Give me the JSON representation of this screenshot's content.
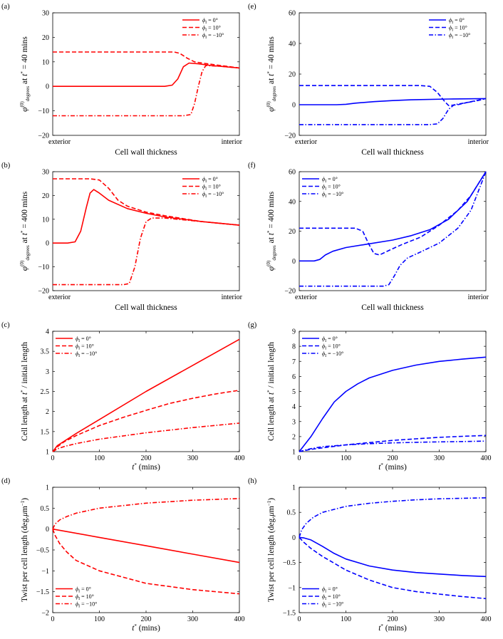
{
  "chart_data": [
    {
      "type": "line",
      "label": "(a)",
      "color": "#ff0000",
      "ylabel": "φ(0)degrees at t* = 40 mins",
      "xlabel": "Cell wall thickness",
      "xticks": [
        "exterior",
        "interior"
      ],
      "xlim": [
        0,
        1
      ],
      "ylim": [
        -20,
        30
      ],
      "yticks": [
        -20,
        -10,
        0,
        10,
        20,
        30
      ],
      "legend": "top-right",
      "series": [
        {
          "name": "ϕI = 0°",
          "dash": "solid",
          "x": [
            0,
            0.5,
            0.6,
            0.64,
            0.67,
            0.7,
            0.73,
            0.78,
            0.85,
            1.0
          ],
          "y": [
            0,
            0,
            0,
            0.5,
            3,
            8,
            9.5,
            9.2,
            8.5,
            7.5
          ]
        },
        {
          "name": "ϕI = 10°",
          "dash": "dash",
          "x": [
            0,
            0.6,
            0.65,
            0.68,
            0.72,
            0.76,
            0.8,
            0.9,
            1.0
          ],
          "y": [
            14,
            14,
            14,
            13.5,
            11.5,
            10,
            9.5,
            8.5,
            7.5
          ]
        },
        {
          "name": "ϕI = −10°",
          "dash": "dashdot",
          "x": [
            0,
            0.7,
            0.74,
            0.76,
            0.78,
            0.8,
            0.82,
            0.9,
            1.0
          ],
          "y": [
            -12,
            -12,
            -11.5,
            -7,
            0,
            6,
            8.5,
            8.2,
            7.5
          ]
        }
      ]
    },
    {
      "type": "line",
      "label": "(b)",
      "color": "#ff0000",
      "ylabel": "φ(0)degrees at t* = 400 mins",
      "xlabel": "Cell wall thickness",
      "xticks": [
        "exterior",
        "interior"
      ],
      "xlim": [
        0,
        1
      ],
      "ylim": [
        -20,
        30
      ],
      "yticks": [
        -20,
        -10,
        0,
        10,
        20,
        30
      ],
      "legend": "top-right",
      "series": [
        {
          "name": "ϕI = 0°",
          "dash": "solid",
          "x": [
            0,
            0.08,
            0.12,
            0.15,
            0.18,
            0.2,
            0.22,
            0.25,
            0.3,
            0.4,
            0.5,
            0.6,
            0.8,
            1.0
          ],
          "y": [
            0,
            0,
            0.5,
            5,
            15,
            21,
            22.5,
            21,
            18,
            14.5,
            12.5,
            11,
            9,
            7.5
          ]
        },
        {
          "name": "ϕI = 10°",
          "dash": "dash",
          "x": [
            0,
            0.2,
            0.25,
            0.3,
            0.35,
            0.4,
            0.5,
            0.6,
            0.8,
            1.0
          ],
          "y": [
            27,
            27,
            26.5,
            23,
            18,
            15.5,
            13,
            11.5,
            9,
            7.5
          ]
        },
        {
          "name": "ϕI = −10°",
          "dash": "dashdot",
          "x": [
            0,
            0.38,
            0.41,
            0.44,
            0.47,
            0.5,
            0.53,
            0.6,
            0.8,
            1.0
          ],
          "y": [
            -17.5,
            -17.5,
            -17,
            -10,
            2,
            9,
            10.5,
            10.5,
            9,
            7.5
          ]
        }
      ]
    },
    {
      "type": "line",
      "label": "(c)",
      "color": "#ff0000",
      "ylabel": "Cell length at t* / initial length",
      "xlabel": "t* (mins)",
      "xlim": [
        0,
        400
      ],
      "ylim": [
        1,
        4
      ],
      "yticks": [
        1,
        1.5,
        2,
        2.5,
        3,
        3.5,
        4
      ],
      "xticks": [
        0,
        100,
        200,
        300,
        400
      ],
      "legend": "top-left",
      "series": [
        {
          "name": "ϕI = 0°",
          "dash": "solid",
          "x": [
            0,
            10,
            50,
            100,
            200,
            300,
            400
          ],
          "y": [
            1,
            1.15,
            1.45,
            1.8,
            2.5,
            3.15,
            3.8
          ]
        },
        {
          "name": "ϕI = 10°",
          "dash": "dash",
          "x": [
            0,
            10,
            25,
            50,
            100,
            150,
            200,
            250,
            300,
            350,
            400
          ],
          "y": [
            1,
            1.12,
            1.25,
            1.4,
            1.65,
            1.85,
            2.03,
            2.2,
            2.33,
            2.44,
            2.53
          ]
        },
        {
          "name": "ϕI = −10°",
          "dash": "dashdot",
          "x": [
            0,
            10,
            25,
            50,
            100,
            200,
            300,
            400
          ],
          "y": [
            1,
            1.07,
            1.13,
            1.2,
            1.31,
            1.47,
            1.6,
            1.71
          ]
        }
      ]
    },
    {
      "type": "line",
      "label": "(d)",
      "color": "#ff0000",
      "ylabel": "Twist per cell length (deg.μm−1)",
      "xlabel": "t* (mins)",
      "xlim": [
        0,
        400
      ],
      "ylim": [
        -2,
        1
      ],
      "yticks": [
        -2,
        -1.5,
        -1,
        -0.5,
        0,
        0.5,
        1
      ],
      "xticks": [
        0,
        100,
        200,
        300,
        400
      ],
      "legend": "bottom-left",
      "series": [
        {
          "name": "ϕI = 0°",
          "dash": "solid",
          "x": [
            0,
            100,
            200,
            300,
            400
          ],
          "y": [
            0,
            -0.2,
            -0.4,
            -0.6,
            -0.8
          ]
        },
        {
          "name": "ϕI = 10°",
          "dash": "dash",
          "x": [
            0,
            5,
            15,
            30,
            50,
            100,
            150,
            200,
            300,
            400
          ],
          "y": [
            0,
            -0.15,
            -0.35,
            -0.55,
            -0.75,
            -1.0,
            -1.15,
            -1.3,
            -1.45,
            -1.55
          ]
        },
        {
          "name": "ϕI = −10°",
          "dash": "dashdot",
          "x": [
            0,
            5,
            15,
            30,
            50,
            100,
            200,
            300,
            400
          ],
          "y": [
            0,
            0.12,
            0.22,
            0.3,
            0.38,
            0.5,
            0.62,
            0.69,
            0.73
          ]
        }
      ]
    },
    {
      "type": "line",
      "label": "(e)",
      "color": "#0000ff",
      "ylabel": "φ(0)degrees at t* = 40 mins",
      "xlabel": "Cell wall thickness",
      "xticks": [
        "exterior",
        "interior"
      ],
      "xlim": [
        0,
        1
      ],
      "ylim": [
        -20,
        60
      ],
      "yticks": [
        -20,
        0,
        20,
        40,
        60
      ],
      "legend": "top-right",
      "series": [
        {
          "name": "ϕI = 0°",
          "dash": "solid",
          "x": [
            0,
            0.2,
            0.25,
            0.3,
            0.4,
            0.5,
            0.6,
            0.8,
            1.0
          ],
          "y": [
            0,
            0,
            0.3,
            1,
            2,
            2.7,
            3.2,
            3.7,
            4
          ]
        },
        {
          "name": "ϕI = 10°",
          "dash": "dash",
          "x": [
            0,
            0.65,
            0.7,
            0.74,
            0.78,
            0.8,
            0.85,
            0.9,
            1.0
          ],
          "y": [
            12.5,
            12.5,
            12,
            8,
            2,
            -0.5,
            0,
            1.5,
            4
          ]
        },
        {
          "name": "ϕI = −10°",
          "dash": "dashdot",
          "x": [
            0,
            0.7,
            0.74,
            0.77,
            0.8,
            0.83,
            0.88,
            0.95,
            1.0
          ],
          "y": [
            -13,
            -13,
            -12.5,
            -9,
            -3,
            0,
            1,
            2.5,
            4
          ]
        }
      ]
    },
    {
      "type": "line",
      "label": "(f)",
      "color": "#0000ff",
      "ylabel": "φ(0)degrees at t* = 400 mins",
      "xlabel": "Cell wall thickness",
      "xticks": [
        "exterior",
        "interior"
      ],
      "xlim": [
        0,
        1
      ],
      "ylim": [
        -20,
        60
      ],
      "yticks": [
        -20,
        0,
        20,
        40,
        60
      ],
      "legend": "top-left",
      "series": [
        {
          "name": "ϕI = 0°",
          "dash": "solid",
          "x": [
            0,
            0.08,
            0.11,
            0.14,
            0.18,
            0.25,
            0.35,
            0.5,
            0.6,
            0.7,
            0.8,
            0.9,
            1.0
          ],
          "y": [
            0,
            0,
            1,
            4,
            6.5,
            9,
            11,
            14,
            17,
            21,
            28,
            40,
            60
          ]
        },
        {
          "name": "ϕI = 10°",
          "dash": "dash",
          "x": [
            0,
            0.3,
            0.34,
            0.37,
            0.4,
            0.43,
            0.48,
            0.55,
            0.65,
            0.75,
            0.85,
            0.92,
            1.0
          ],
          "y": [
            22,
            22,
            20,
            12,
            5,
            4,
            7,
            11,
            16,
            24,
            34,
            44,
            60
          ]
        },
        {
          "name": "ϕI = −10°",
          "dash": "dashdot",
          "x": [
            0,
            0.45,
            0.48,
            0.51,
            0.54,
            0.58,
            0.65,
            0.75,
            0.85,
            0.92,
            1.0
          ],
          "y": [
            -17,
            -17,
            -16,
            -10,
            -3,
            2,
            6,
            12,
            22,
            34,
            60
          ]
        }
      ]
    },
    {
      "type": "line",
      "label": "(g)",
      "color": "#0000ff",
      "ylabel": "Cell length at t* / initial length",
      "xlabel": "t* (mins)",
      "xlim": [
        0,
        400
      ],
      "ylim": [
        1,
        9
      ],
      "yticks": [
        1,
        2,
        3,
        4,
        5,
        6,
        7,
        8,
        9
      ],
      "xticks": [
        0,
        100,
        200,
        300,
        400
      ],
      "legend": "top-left",
      "series": [
        {
          "name": "ϕI = 0°",
          "dash": "solid",
          "x": [
            0,
            25,
            50,
            75,
            100,
            125,
            150,
            200,
            250,
            300,
            350,
            400
          ],
          "y": [
            1,
            2.0,
            3.2,
            4.3,
            5.0,
            5.5,
            5.9,
            6.4,
            6.75,
            7.0,
            7.15,
            7.28
          ]
        },
        {
          "name": "ϕI = 10°",
          "dash": "dash",
          "x": [
            0,
            25,
            50,
            100,
            150,
            200,
            250,
            300,
            350,
            400
          ],
          "y": [
            1,
            1.15,
            1.25,
            1.45,
            1.6,
            1.75,
            1.85,
            1.95,
            2.02,
            2.08
          ]
        },
        {
          "name": "ϕI = −10°",
          "dash": "dashdot",
          "x": [
            0,
            25,
            50,
            100,
            150,
            200,
            250,
            300,
            350,
            400
          ],
          "y": [
            1,
            1.2,
            1.33,
            1.45,
            1.53,
            1.58,
            1.62,
            1.65,
            1.67,
            1.7
          ]
        }
      ]
    },
    {
      "type": "line",
      "label": "(h)",
      "color": "#0000ff",
      "ylabel": "Twist per cell length (deg.μm−1)",
      "xlabel": "t* (mins)",
      "xlim": [
        0,
        400
      ],
      "ylim": [
        -1.5,
        1
      ],
      "yticks": [
        -1.5,
        -1,
        -0.5,
        0,
        0.5,
        1
      ],
      "xticks": [
        0,
        100,
        200,
        300,
        400
      ],
      "legend": "bottom-left",
      "series": [
        {
          "name": "ϕI = 0°",
          "dash": "solid",
          "x": [
            0,
            10,
            25,
            50,
            75,
            100,
            150,
            200,
            250,
            300,
            350,
            400
          ],
          "y": [
            0,
            -0.01,
            -0.05,
            -0.18,
            -0.32,
            -0.43,
            -0.57,
            -0.65,
            -0.7,
            -0.73,
            -0.76,
            -0.78
          ]
        },
        {
          "name": "ϕI = 10°",
          "dash": "dash",
          "x": [
            0,
            10,
            25,
            50,
            100,
            150,
            200,
            250,
            300,
            350,
            400
          ],
          "y": [
            0,
            -0.1,
            -0.22,
            -0.38,
            -0.65,
            -0.85,
            -1.0,
            -1.08,
            -1.13,
            -1.18,
            -1.22
          ]
        },
        {
          "name": "ϕI = −10°",
          "dash": "dashdot",
          "x": [
            0,
            5,
            15,
            30,
            50,
            100,
            150,
            200,
            250,
            300,
            350,
            400
          ],
          "y": [
            0,
            0.15,
            0.28,
            0.4,
            0.5,
            0.62,
            0.68,
            0.72,
            0.75,
            0.77,
            0.78,
            0.79
          ]
        }
      ]
    }
  ]
}
